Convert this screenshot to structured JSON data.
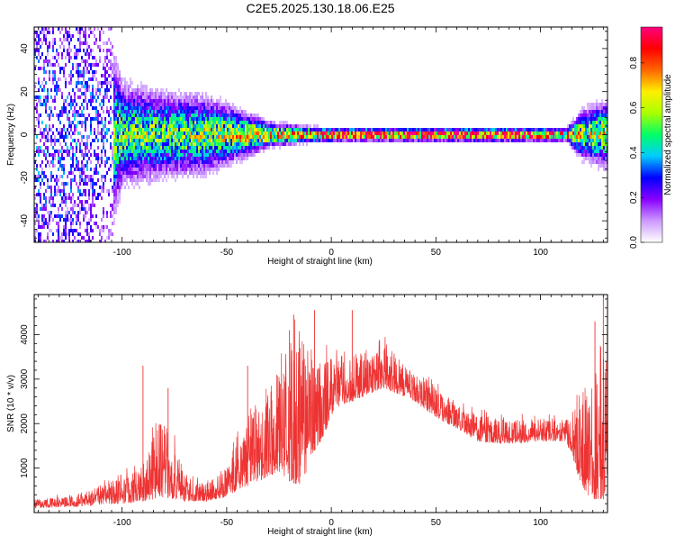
{
  "figure": {
    "title": "C2E5.2025.130.18.06.E25"
  },
  "chart_data": [
    {
      "type": "heatmap",
      "xlabel": "Height of straight line (km)",
      "ylabel": "Frequency (Hz)",
      "xlim": [
        -142,
        132
      ],
      "ylim": [
        -50,
        50
      ],
      "xticks": [
        -100,
        -50,
        0,
        50,
        100
      ],
      "xtick_labels": [
        "-100",
        "-50",
        "0",
        "50",
        "100"
      ],
      "yticks": [
        -40,
        -20,
        0,
        20,
        40
      ],
      "ytick_labels": [
        "-40",
        "-20",
        "0",
        "20",
        "40"
      ],
      "colorbar": {
        "label": "Normalized spectral amplitude",
        "ticks": [
          0.0,
          0.2,
          0.4,
          0.6,
          0.8
        ],
        "tick_labels": [
          "0.0",
          "0.2",
          "0.4",
          "0.6",
          "0.8"
        ],
        "range": [
          0,
          0.96
        ],
        "colormap": [
          "#ffffff",
          "#cc99ff",
          "#8800ff",
          "#0000ff",
          "#00ccff",
          "#00ff66",
          "#aaff00",
          "#ffee00",
          "#ff6600",
          "#ff0000",
          "#ff0080"
        ]
      },
      "band_profile": {
        "x": [
          -142,
          -120,
          -100,
          -80,
          -60,
          -45,
          -30,
          -15,
          0,
          30,
          60,
          90,
          112,
          120,
          132
        ],
        "width_hz": [
          50,
          45,
          12,
          10,
          9,
          6,
          3,
          2,
          1.5,
          1.5,
          1.5,
          1.5,
          1.5,
          6,
          8
        ],
        "peak_amplitude": [
          0.25,
          0.35,
          0.5,
          0.5,
          0.55,
          0.6,
          0.65,
          0.75,
          0.9,
          0.92,
          0.95,
          0.93,
          0.75,
          0.55,
          0.6
        ]
      }
    },
    {
      "type": "line",
      "xlabel": "Height of straight line (km)",
      "ylabel": "SNR (10 * v/v)",
      "xlim": [
        -142,
        132
      ],
      "ylim": [
        0,
        4900
      ],
      "xticks": [
        -100,
        -50,
        0,
        50,
        100
      ],
      "xtick_labels": [
        "-100",
        "-50",
        "0",
        "50",
        "100"
      ],
      "yticks": [
        1000,
        2000,
        3000,
        4000
      ],
      "ytick_labels": [
        "1000",
        "2000",
        "3000",
        "4000"
      ],
      "series": [
        {
          "color": "#ee3333",
          "envelope_x": [
            -142,
            -130,
            -120,
            -110,
            -100,
            -90,
            -85,
            -80,
            -75,
            -70,
            -65,
            -60,
            -55,
            -50,
            -45,
            -40,
            -35,
            -30,
            -25,
            -20,
            -15,
            -12,
            -10,
            -8,
            -5,
            -2,
            0,
            5,
            10,
            15,
            20,
            25,
            30,
            35,
            40,
            45,
            50,
            55,
            60,
            65,
            70,
            80,
            90,
            100,
            108,
            112,
            115,
            118,
            122,
            126,
            130,
            132
          ],
          "envelope_low": [
            100,
            120,
            130,
            180,
            200,
            250,
            300,
            350,
            300,
            250,
            250,
            250,
            300,
            350,
            500,
            600,
            700,
            800,
            900,
            700,
            600,
            900,
            1200,
            1400,
            1600,
            1900,
            2200,
            2400,
            2500,
            2600,
            2700,
            2800,
            2700,
            2600,
            2500,
            2300,
            2150,
            2000,
            1900,
            1750,
            1600,
            1550,
            1550,
            1600,
            1600,
            1600,
            1300,
            800,
            400,
            300,
            300,
            500
          ],
          "envelope_high": [
            300,
            350,
            400,
            600,
            800,
            1100,
            1700,
            2200,
            1500,
            900,
            700,
            650,
            800,
            1100,
            1600,
            2200,
            2500,
            2700,
            3200,
            3800,
            4200,
            3900,
            3500,
            3300,
            3400,
            3500,
            3500,
            3400,
            3500,
            3700,
            3600,
            3800,
            3600,
            3300,
            3100,
            3000,
            2800,
            2600,
            2400,
            2300,
            2200,
            2100,
            2100,
            2100,
            2100,
            2100,
            2200,
            2500,
            2900,
            3200,
            3500,
            3800
          ],
          "spikes": [
            {
              "x": -90,
              "y": 3300
            },
            {
              "x": -78,
              "y": 2800
            },
            {
              "x": -40,
              "y": 3300
            },
            {
              "x": -20,
              "y": 4100
            },
            {
              "x": -18,
              "y": 4450
            },
            {
              "x": -8,
              "y": 4550
            },
            {
              "x": 10,
              "y": 4550
            },
            {
              "x": 126,
              "y": 4300
            },
            {
              "x": 130,
              "y": 4850
            }
          ]
        }
      ]
    }
  ]
}
